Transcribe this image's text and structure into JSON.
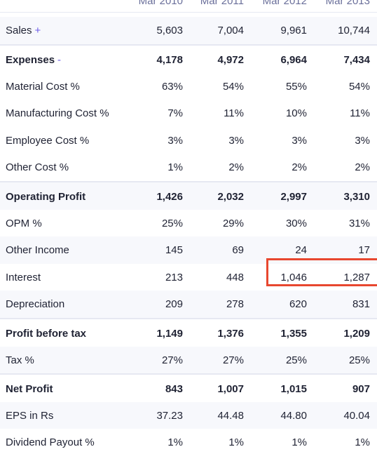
{
  "columns": [
    "Mar 2010",
    "Mar 2011",
    "Mar 2012",
    "Mar 2013"
  ],
  "rows": [
    {
      "label": "Sales",
      "suffix": "+",
      "values": [
        "5,603",
        "7,004",
        "9,961",
        "10,744"
      ]
    },
    {
      "label": "Expenses",
      "suffix": "-",
      "values": [
        "4,178",
        "4,972",
        "6,964",
        "7,434"
      ]
    },
    {
      "label": "Material Cost %",
      "values": [
        "63%",
        "54%",
        "55%",
        "54%"
      ]
    },
    {
      "label": "Manufacturing Cost %",
      "values": [
        "7%",
        "11%",
        "10%",
        "11%"
      ]
    },
    {
      "label": "Employee Cost %",
      "values": [
        "3%",
        "3%",
        "3%",
        "3%"
      ]
    },
    {
      "label": "Other Cost %",
      "values": [
        "1%",
        "2%",
        "2%",
        "2%"
      ]
    },
    {
      "label": "Operating Profit",
      "values": [
        "1,426",
        "2,032",
        "2,997",
        "3,310"
      ]
    },
    {
      "label": "OPM %",
      "values": [
        "25%",
        "29%",
        "30%",
        "31%"
      ]
    },
    {
      "label": "Other Income",
      "values": [
        "145",
        "69",
        "24",
        "17"
      ]
    },
    {
      "label": "Interest",
      "values": [
        "213",
        "448",
        "1,046",
        "1,287"
      ]
    },
    {
      "label": "Depreciation",
      "values": [
        "209",
        "278",
        "620",
        "831"
      ]
    },
    {
      "label": "Profit before tax",
      "values": [
        "1,149",
        "1,376",
        "1,355",
        "1,209"
      ]
    },
    {
      "label": "Tax %",
      "values": [
        "27%",
        "27%",
        "25%",
        "25%"
      ]
    },
    {
      "label": "Net Profit",
      "values": [
        "843",
        "1,007",
        "1,015",
        "907"
      ]
    },
    {
      "label": "EPS in Rs",
      "values": [
        "37.23",
        "44.48",
        "44.80",
        "40.04"
      ]
    },
    {
      "label": "Dividend Payout %",
      "values": [
        "1%",
        "1%",
        "1%",
        "1%"
      ]
    }
  ],
  "highlight_color": "#e8472f",
  "accent_color": "#6c5ce7"
}
